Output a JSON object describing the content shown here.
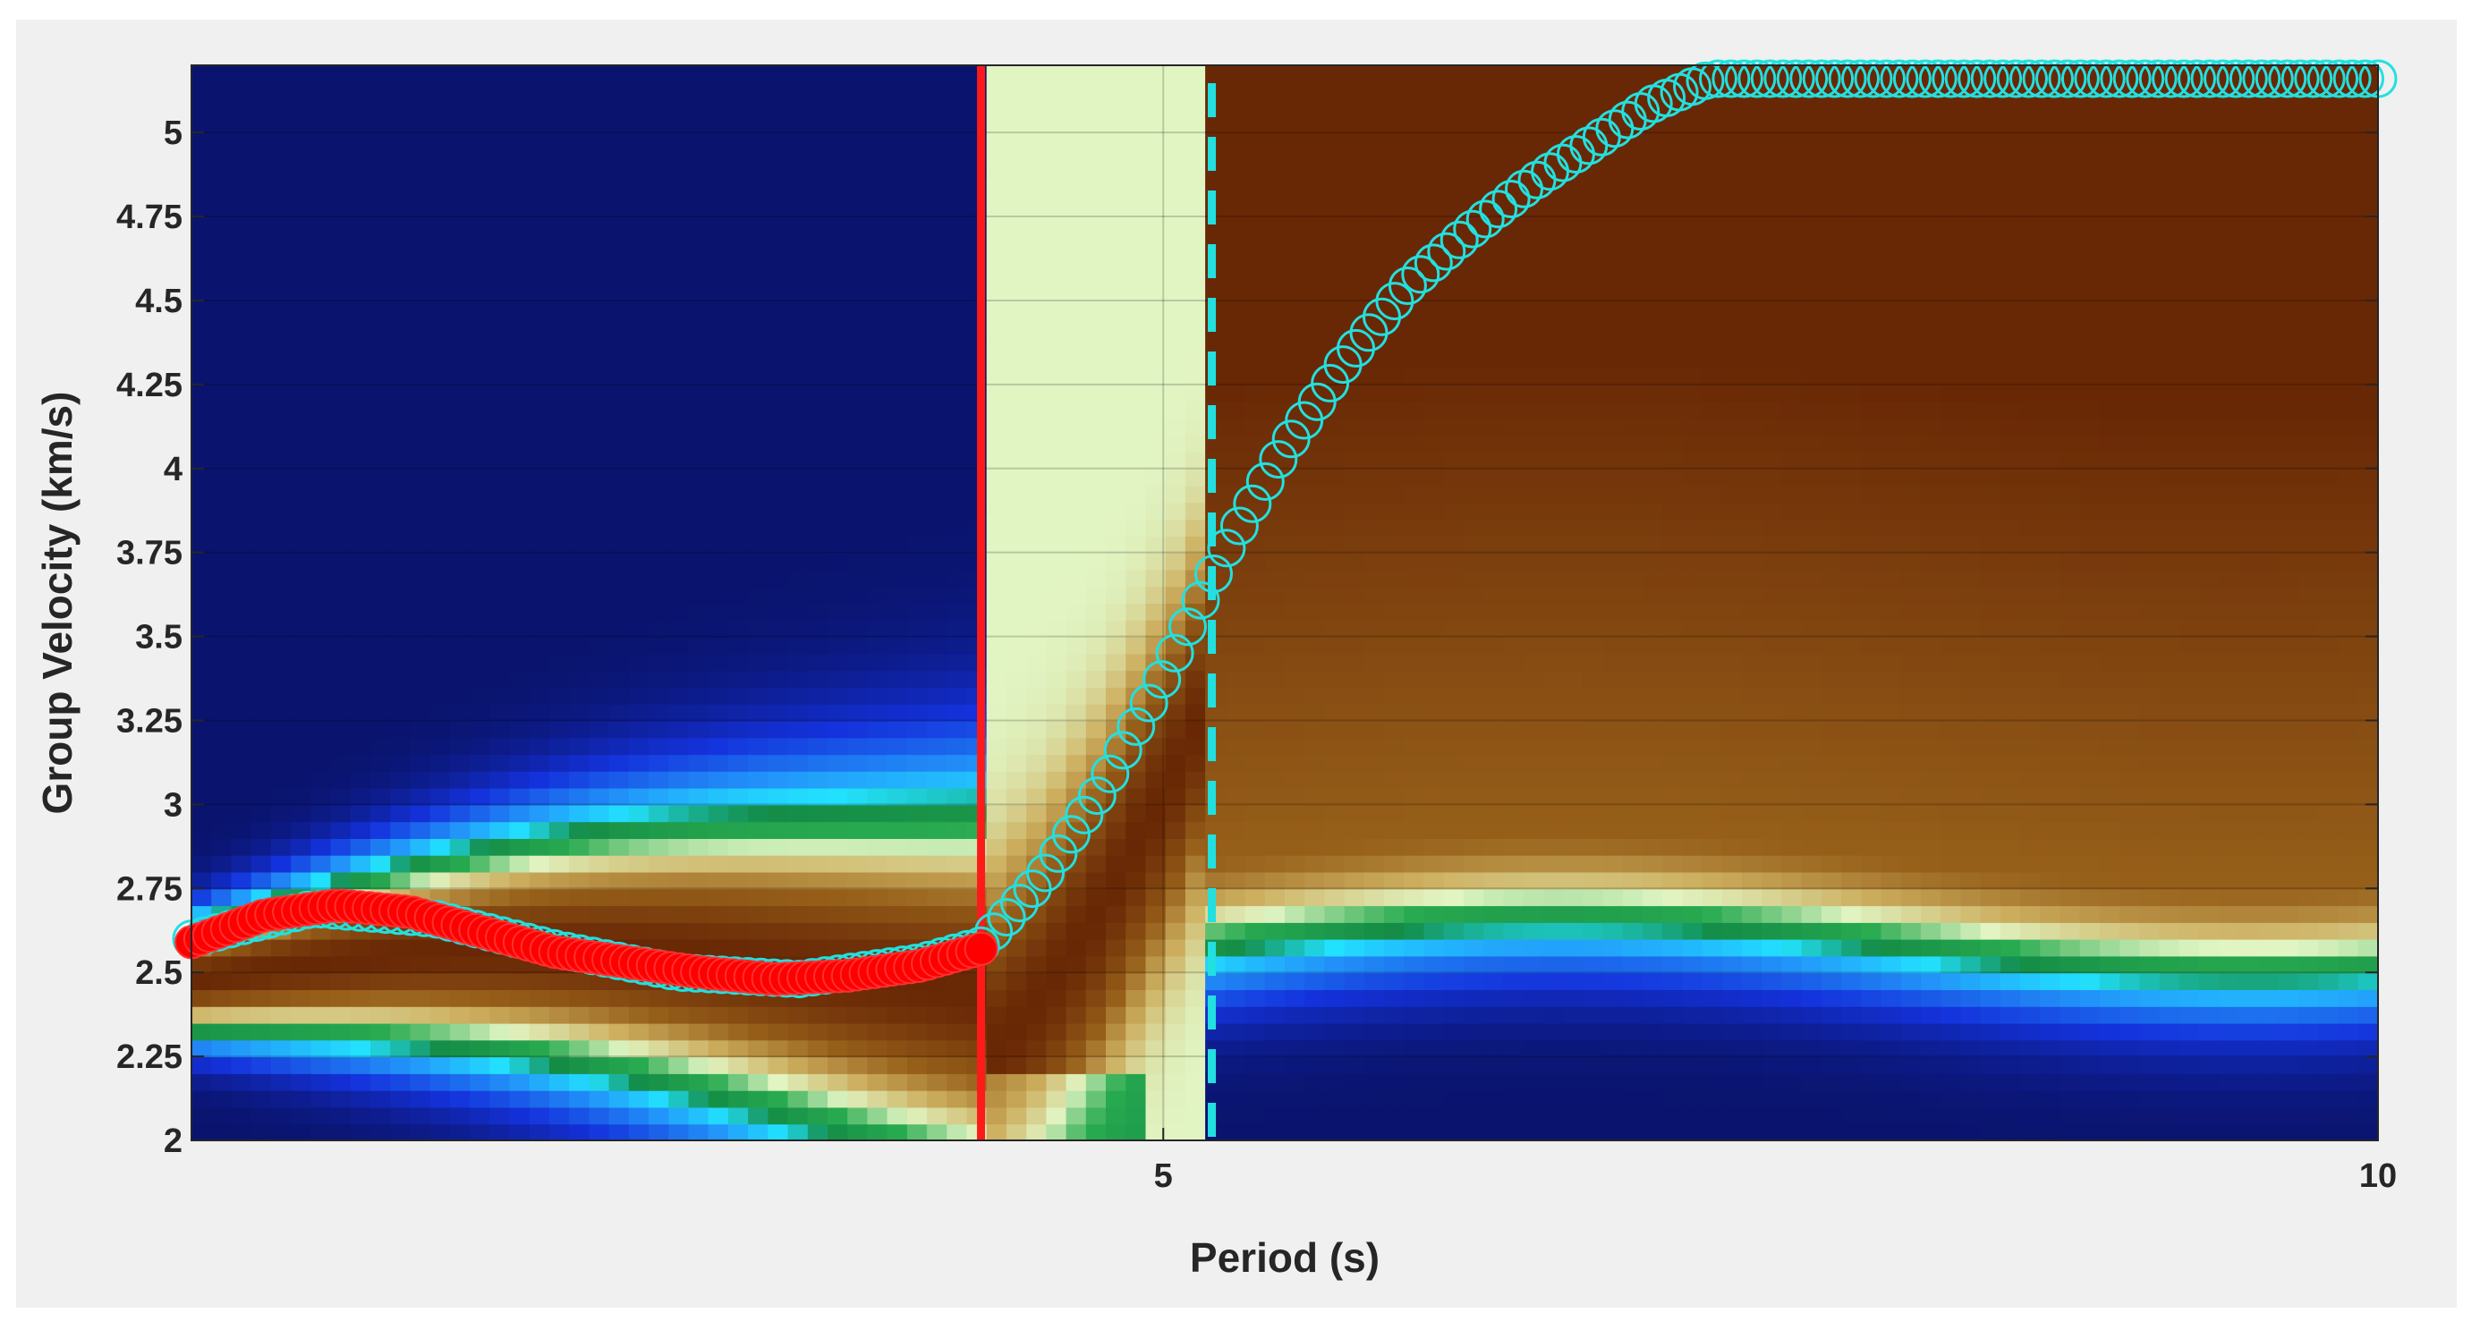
{
  "chart_data": {
    "type": "heatmap",
    "title": "",
    "xlabel": "Period (s)",
    "ylabel": "Group Velocity (km/s)",
    "xlim": [
      1,
      10
    ],
    "ylim": [
      2,
      5.2
    ],
    "x_ticks": [
      5,
      10
    ],
    "x_tick_labels": [
      "5",
      "10"
    ],
    "y_ticks": [
      2,
      2.25,
      2.5,
      2.75,
      3,
      3.25,
      3.5,
      3.75,
      4,
      4.25,
      4.5,
      4.75,
      5
    ],
    "y_tick_labels": [
      "2",
      "2.25",
      "2.5",
      "2.75",
      "3",
      "3.25",
      "3.5",
      "3.75",
      "4",
      "4.25",
      "4.5",
      "4.75",
      "5"
    ],
    "grid": true,
    "colormap": [
      "#0a1fb0",
      "#1a5ff0",
      "#22d8ff",
      "#0a9a3a",
      "#e8f5c0",
      "#c8a848",
      "#6b2a05"
    ],
    "red_vertical_line_period": 4.25,
    "cyan_dashed_line_period": 5.2,
    "picked_dispersion_curve": {
      "color": "#ff0000",
      "period": [
        1.0,
        1.3,
        1.6,
        1.9,
        2.2,
        2.5,
        2.8,
        3.1,
        3.4,
        3.7,
        4.0,
        4.25
      ],
      "group_velocity": [
        2.59,
        2.67,
        2.7,
        2.68,
        2.62,
        2.56,
        2.53,
        2.5,
        2.48,
        2.49,
        2.52,
        2.57
      ]
    },
    "reference_dispersion_curve": {
      "color": "#22e0e0",
      "period": [
        1.0,
        1.5,
        2.0,
        2.5,
        3.0,
        3.5,
        4.0,
        4.25,
        4.5,
        4.75,
        5.0,
        5.25,
        5.5,
        5.75,
        6.0,
        6.25,
        6.5,
        6.75,
        7.0,
        7.25,
        7.5,
        8.0,
        8.5,
        9.0,
        9.5,
        10.0
      ],
      "group_velocity": [
        2.6,
        2.69,
        2.66,
        2.57,
        2.5,
        2.48,
        2.53,
        2.58,
        2.78,
        3.05,
        3.38,
        3.75,
        4.06,
        4.32,
        4.54,
        4.7,
        4.84,
        4.96,
        5.08,
        5.16,
        5.16,
        5.16,
        5.16,
        5.16,
        5.16,
        5.16
      ]
    }
  }
}
